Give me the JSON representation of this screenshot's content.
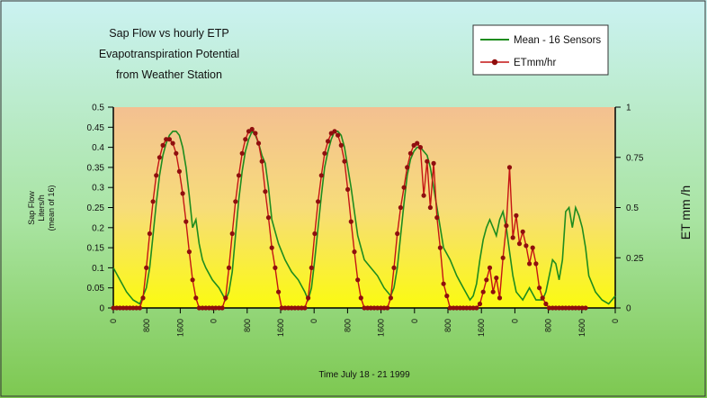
{
  "chart_data": {
    "type": "line",
    "title_lines": [
      "Sap Flow vs hourly ETP",
      "Evapotranspiration Potential",
      "from Weather Station"
    ],
    "xlabel": "Time July 18 - 21 1999",
    "ylabel_left_lines": [
      "Sap Flow",
      "Liters/h",
      "(mean of 16)"
    ],
    "ylabel_right": "ET mm /h",
    "x_tick_labels": [
      "0",
      "800",
      "1600",
      "0",
      "800",
      "1600",
      "0",
      "800",
      "1600",
      "0",
      "800",
      "1600",
      "0",
      "800",
      "1600",
      "0"
    ],
    "y_left": {
      "ylim": [
        0,
        0.5
      ],
      "ticks": [
        "0",
        "0.05",
        "0.1",
        "0.15",
        "0.2",
        "0.25",
        "0.3",
        "0.35",
        "0.4",
        "0.45",
        "0.5"
      ]
    },
    "y_right": {
      "ylim": [
        0,
        1
      ],
      "ticks": [
        "0",
        "0.25",
        "0.5",
        "0.75",
        "1"
      ]
    },
    "legend_position": "top-right",
    "series": [
      {
        "name": "Mean - 16 Sensors",
        "axis": "left",
        "color": "#1e8c1e",
        "x": [
          0,
          2,
          4,
          6,
          8,
          10,
          11,
          12,
          13,
          14,
          15,
          16,
          17,
          18,
          19,
          20,
          21,
          22,
          23,
          24,
          25,
          26,
          27,
          28,
          30,
          32,
          34,
          35,
          36,
          37,
          38,
          39,
          40,
          41,
          42,
          43,
          44,
          45,
          46,
          47,
          48,
          50,
          52,
          54,
          56,
          58,
          59,
          60,
          61,
          62,
          63,
          64,
          65,
          66,
          67,
          68,
          69,
          70,
          72,
          74,
          76,
          78,
          80,
          82,
          84,
          85,
          86,
          87,
          88,
          89,
          90,
          91,
          92,
          93,
          94,
          95,
          96,
          98,
          100,
          102,
          104,
          106,
          108,
          109,
          110,
          111,
          112,
          113,
          114,
          115,
          116,
          117,
          118,
          119,
          120,
          121,
          122,
          124,
          126,
          128,
          130,
          131,
          132,
          133,
          134,
          135,
          136,
          137,
          138,
          139,
          140,
          141,
          142,
          143,
          144,
          146,
          148,
          150,
          152
        ],
        "values": [
          0.1,
          0.07,
          0.04,
          0.02,
          0.01,
          0.05,
          0.1,
          0.18,
          0.26,
          0.33,
          0.38,
          0.41,
          0.43,
          0.44,
          0.44,
          0.43,
          0.4,
          0.35,
          0.28,
          0.2,
          0.22,
          0.16,
          0.12,
          0.1,
          0.07,
          0.05,
          0.02,
          0.04,
          0.09,
          0.18,
          0.27,
          0.34,
          0.39,
          0.42,
          0.44,
          0.43,
          0.41,
          0.38,
          0.36,
          0.3,
          0.22,
          0.16,
          0.12,
          0.09,
          0.07,
          0.04,
          0.02,
          0.05,
          0.12,
          0.2,
          0.28,
          0.35,
          0.39,
          0.42,
          0.44,
          0.44,
          0.43,
          0.4,
          0.3,
          0.18,
          0.12,
          0.1,
          0.08,
          0.05,
          0.03,
          0.05,
          0.1,
          0.18,
          0.26,
          0.33,
          0.37,
          0.39,
          0.4,
          0.4,
          0.39,
          0.38,
          0.35,
          0.25,
          0.15,
          0.12,
          0.08,
          0.05,
          0.02,
          0.03,
          0.06,
          0.12,
          0.17,
          0.2,
          0.22,
          0.2,
          0.18,
          0.22,
          0.24,
          0.2,
          0.14,
          0.08,
          0.04,
          0.02,
          0.05,
          0.02,
          0.02,
          0.04,
          0.08,
          0.12,
          0.11,
          0.07,
          0.12,
          0.24,
          0.25,
          0.2,
          0.25,
          0.23,
          0.2,
          0.15,
          0.08,
          0.04,
          0.02,
          0.01,
          0.03
        ]
      },
      {
        "name": "ETmm/hr",
        "axis": "right",
        "color": "#c41414",
        "x": [
          0,
          1,
          2,
          3,
          4,
          5,
          6,
          7,
          8,
          9,
          10,
          11,
          12,
          13,
          14,
          15,
          16,
          17,
          18,
          19,
          20,
          21,
          22,
          23,
          24,
          25,
          26,
          27,
          28,
          29,
          30,
          31,
          32,
          33,
          34,
          35,
          36,
          37,
          38,
          39,
          40,
          41,
          42,
          43,
          44,
          45,
          46,
          47,
          48,
          49,
          50,
          51,
          52,
          53,
          54,
          55,
          56,
          57,
          58,
          59,
          60,
          61,
          62,
          63,
          64,
          65,
          66,
          67,
          68,
          69,
          70,
          71,
          72,
          73,
          74,
          75,
          76,
          77,
          78,
          79,
          80,
          81,
          82,
          83,
          84,
          85,
          86,
          87,
          88,
          89,
          90,
          91,
          92,
          93,
          94,
          95,
          96,
          97,
          98,
          99,
          100,
          101,
          102,
          103,
          104,
          105,
          106,
          107,
          108,
          109,
          110,
          111,
          112,
          113,
          114,
          115,
          116,
          117,
          118,
          119,
          120,
          121,
          122,
          123,
          124,
          125,
          126,
          127,
          128,
          129,
          130,
          131,
          132,
          133,
          134,
          135,
          136,
          137,
          138,
          139,
          140,
          141,
          142,
          143
        ],
        "values": [
          0,
          0,
          0,
          0,
          0,
          0,
          0,
          0,
          0,
          0.05,
          0.2,
          0.37,
          0.53,
          0.66,
          0.75,
          0.81,
          0.84,
          0.84,
          0.82,
          0.77,
          0.68,
          0.57,
          0.43,
          0.28,
          0.14,
          0.05,
          0,
          0,
          0,
          0,
          0,
          0,
          0,
          0,
          0.05,
          0.2,
          0.37,
          0.53,
          0.66,
          0.77,
          0.84,
          0.88,
          0.89,
          0.87,
          0.82,
          0.73,
          0.58,
          0.45,
          0.3,
          0.2,
          0.08,
          0,
          0,
          0,
          0,
          0,
          0,
          0,
          0,
          0.05,
          0.2,
          0.37,
          0.53,
          0.66,
          0.77,
          0.83,
          0.87,
          0.88,
          0.86,
          0.81,
          0.73,
          0.59,
          0.43,
          0.28,
          0.14,
          0.05,
          0,
          0,
          0,
          0,
          0,
          0,
          0,
          0,
          0.05,
          0.2,
          0.37,
          0.5,
          0.6,
          0.7,
          0.77,
          0.81,
          0.82,
          0.8,
          0.56,
          0.73,
          0.5,
          0.72,
          0.45,
          0.3,
          0.12,
          0.06,
          0,
          0,
          0,
          0,
          0,
          0,
          0,
          0,
          0,
          0.02,
          0.08,
          0.14,
          0.2,
          0.08,
          0.15,
          0.05,
          0.25,
          0.41,
          0.7,
          0.35,
          0.46,
          0.32,
          0.38,
          0.31,
          0.22,
          0.3,
          0.22,
          0.1,
          0.05,
          0.02,
          0,
          0,
          0,
          0,
          0,
          0,
          0,
          0,
          0,
          0,
          0,
          0
        ]
      }
    ]
  }
}
